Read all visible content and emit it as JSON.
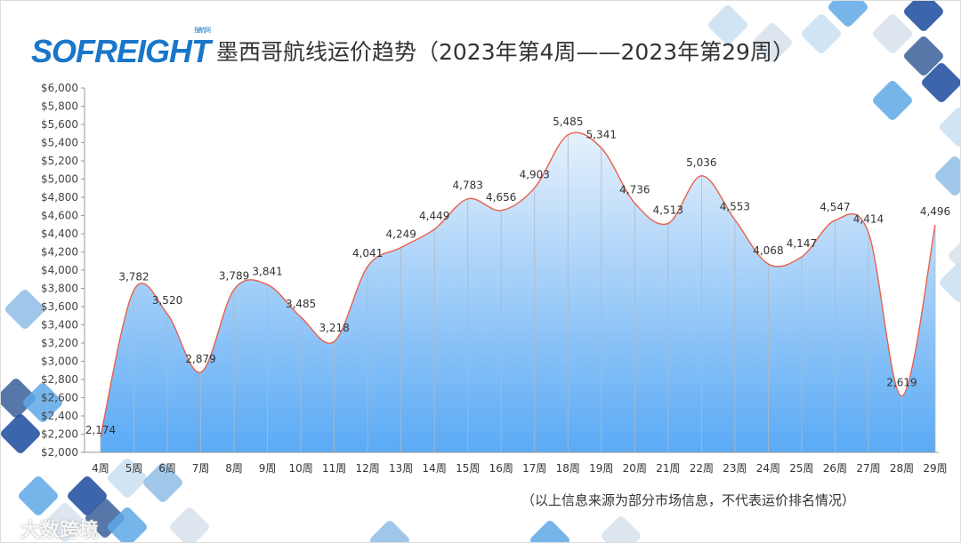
{
  "header": {
    "logo_text": "SOFREIGHT",
    "logo_subtext": "搜航网",
    "title": "墨西哥航线运价趋势（2023年第4周——2023年第29周）"
  },
  "footer": {
    "note": "（以上信息来源为部分市场信息，不代表运价排名情况）",
    "watermark": "大数跨境"
  },
  "colors": {
    "line": "#e8604c",
    "area_top": "#e6f1fc",
    "area_bottom": "#5aaaf5",
    "accent_dark": "#1a4a9e",
    "accent_light": "#5da8e6"
  },
  "chart_data": {
    "type": "area",
    "title": "墨西哥航线运价趋势（2023年第4周——2023年第29周）",
    "xlabel": "",
    "ylabel": "",
    "ylim": [
      2000,
      6000
    ],
    "y_ticks": [
      "$2,000",
      "$2,200",
      "$2,400",
      "$2,600",
      "$2,800",
      "$3,000",
      "$3,200",
      "$3,400",
      "$3,600",
      "$3,800",
      "$4,000",
      "$4,200",
      "$4,400",
      "$4,600",
      "$4,800",
      "$5,000",
      "$5,200",
      "$5,400",
      "$5,600",
      "$5,800",
      "$6,000"
    ],
    "categories": [
      "4周",
      "5周",
      "6周",
      "7周",
      "8周",
      "9周",
      "10周",
      "11周",
      "12周",
      "13周",
      "14周",
      "15周",
      "16周",
      "17周",
      "18周",
      "19周",
      "20周",
      "21周",
      "22周",
      "23周",
      "24周",
      "25周",
      "26周",
      "27周",
      "28周",
      "29周"
    ],
    "values": [
      2174,
      3782,
      3520,
      2879,
      3789,
      3841,
      3485,
      3218,
      4041,
      4249,
      4449,
      4783,
      4656,
      4903,
      5485,
      5341,
      4736,
      4513,
      5036,
      4553,
      4068,
      4147,
      4547,
      4414,
      2619,
      4496
    ],
    "grid": false,
    "legend": "none"
  }
}
